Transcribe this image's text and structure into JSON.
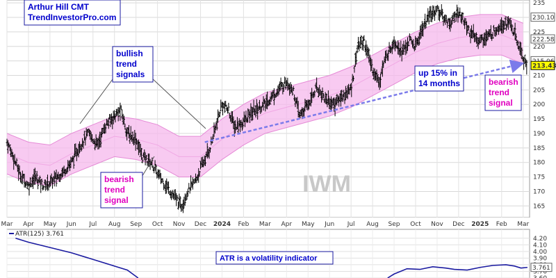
{
  "chart_data": [
    {
      "type": "candlestick-ohlc",
      "symbol": "IWM",
      "credit": {
        "line1": "Arthur Hill CMT",
        "line2": "TrendInvestorPro.com"
      },
      "y_axis": {
        "ticks": [
          165,
          170,
          175,
          180,
          185,
          190,
          195,
          200,
          205,
          210,
          215,
          220,
          225,
          230,
          235
        ],
        "ylim": [
          161,
          236
        ]
      },
      "x_axis": {
        "labels": [
          {
            "t": 0,
            "text": "Mar"
          },
          {
            "t": 1,
            "text": "Apr"
          },
          {
            "t": 2,
            "text": "May"
          },
          {
            "t": 3,
            "text": "Jun"
          },
          {
            "t": 4,
            "text": "Jul"
          },
          {
            "t": 5,
            "text": "Aug"
          },
          {
            "t": 6,
            "text": "Sep"
          },
          {
            "t": 7,
            "text": "Oct"
          },
          {
            "t": 8,
            "text": "Nov"
          },
          {
            "t": 9,
            "text": "Dec"
          },
          {
            "t": 10,
            "text": "2024",
            "bold": true
          },
          {
            "t": 11,
            "text": "Feb"
          },
          {
            "t": 12,
            "text": "Mar"
          },
          {
            "t": 13,
            "text": "Apr"
          },
          {
            "t": 14,
            "text": "May"
          },
          {
            "t": 15,
            "text": "Jun"
          },
          {
            "t": 16,
            "text": "Jul"
          },
          {
            "t": 17,
            "text": "Aug"
          },
          {
            "t": 18,
            "text": "Sep"
          },
          {
            "t": 19,
            "text": "Oct"
          },
          {
            "t": 20,
            "text": "Nov"
          },
          {
            "t": 21,
            "text": "Dec"
          },
          {
            "t": 22,
            "text": "2025",
            "bold": true
          },
          {
            "t": 23,
            "text": "Feb"
          },
          {
            "t": 24,
            "text": "Mar"
          }
        ],
        "xlim": [
          0,
          24.3
        ]
      },
      "price_path": [
        [
          0,
          187
        ],
        [
          0.3,
          182
        ],
        [
          0.6,
          176
        ],
        [
          1.0,
          172
        ],
        [
          1.3,
          175
        ],
        [
          1.7,
          172
        ],
        [
          2.0,
          173
        ],
        [
          2.5,
          176
        ],
        [
          3.0,
          180
        ],
        [
          3.4,
          186
        ],
        [
          3.8,
          190
        ],
        [
          4.2,
          186
        ],
        [
          4.6,
          193
        ],
        [
          5.0,
          196
        ],
        [
          5.3,
          198
        ],
        [
          5.6,
          190
        ],
        [
          6.0,
          188
        ],
        [
          6.3,
          182
        ],
        [
          6.7,
          180
        ],
        [
          7.0,
          176
        ],
        [
          7.4,
          172
        ],
        [
          7.8,
          168
        ],
        [
          8.1,
          165
        ],
        [
          8.4,
          170
        ],
        [
          8.8,
          174
        ],
        [
          9.0,
          178
        ],
        [
          9.4,
          184
        ],
        [
          9.7,
          192
        ],
        [
          10.0,
          200
        ],
        [
          10.3,
          198
        ],
        [
          10.6,
          192
        ],
        [
          11.0,
          194
        ],
        [
          11.5,
          198
        ],
        [
          12.0,
          200
        ],
        [
          12.5,
          204
        ],
        [
          13.0,
          208
        ],
        [
          13.3,
          205
        ],
        [
          13.6,
          196
        ],
        [
          14.0,
          200
        ],
        [
          14.4,
          206
        ],
        [
          14.8,
          202
        ],
        [
          15.2,
          200
        ],
        [
          15.6,
          203
        ],
        [
          16.0,
          205
        ],
        [
          16.3,
          220
        ],
        [
          16.6,
          222
        ],
        [
          17.0,
          212
        ],
        [
          17.3,
          208
        ],
        [
          17.6,
          216
        ],
        [
          18.0,
          222
        ],
        [
          18.4,
          218
        ],
        [
          18.7,
          222
        ],
        [
          19.0,
          220
        ],
        [
          19.3,
          226
        ],
        [
          19.6,
          230
        ],
        [
          20.0,
          233
        ],
        [
          20.3,
          230
        ],
        [
          20.6,
          228
        ],
        [
          21.0,
          232
        ],
        [
          21.3,
          228
        ],
        [
          21.6,
          224
        ],
        [
          22.0,
          222
        ],
        [
          22.5,
          224
        ],
        [
          23.0,
          228
        ],
        [
          23.4,
          228
        ],
        [
          23.7,
          222
        ],
        [
          24.0,
          216
        ],
        [
          24.2,
          213
        ]
      ],
      "bollinger_band": {
        "mid": [
          [
            0,
            183
          ],
          [
            1,
            180
          ],
          [
            2,
            179
          ],
          [
            3,
            183
          ],
          [
            4,
            186
          ],
          [
            5,
            189
          ],
          [
            6,
            188
          ],
          [
            7,
            186
          ],
          [
            8,
            182
          ],
          [
            9,
            182
          ],
          [
            10,
            188
          ],
          [
            11,
            193
          ],
          [
            12,
            197
          ],
          [
            13,
            199
          ],
          [
            14,
            201
          ],
          [
            15,
            203
          ],
          [
            16,
            206
          ],
          [
            17,
            210
          ],
          [
            18,
            214
          ],
          [
            19,
            218
          ],
          [
            20,
            221
          ],
          [
            21,
            223
          ],
          [
            22,
            224
          ],
          [
            23,
            224
          ],
          [
            24,
            221
          ]
        ],
        "half_width": 7
      },
      "price_labels": [
        {
          "value": 230.1,
          "text": "230.10",
          "style": "boxed"
        },
        {
          "value": 222.58,
          "text": "222.58",
          "style": "boxed"
        },
        {
          "value": 215.06,
          "text": "215.06",
          "style": "boxed"
        },
        {
          "value": 213.43,
          "text": "213.43",
          "style": "highlight"
        }
      ],
      "trend_arrow": {
        "from": [
          9.2,
          187
        ],
        "to": [
          23.9,
          214
        ]
      },
      "annotations": {
        "bullish": {
          "lines": [
            "bullish",
            "trend",
            "signals"
          ]
        },
        "up15": {
          "lines": [
            "up 15% in",
            "14 months"
          ]
        },
        "bearish_left": {
          "lines": [
            "bearish",
            "trend",
            "signal"
          ]
        },
        "bearish_right": {
          "lines": [
            "bearish",
            "trend",
            "signal"
          ]
        }
      },
      "watermark": "IWM",
      "colors": {
        "band": "#f5b8ec",
        "line": "#000000",
        "box_border": "#1a1aa0",
        "blue_text": "#0000cc",
        "magenta_text": "#e000c0",
        "arrow": "#7b7bea",
        "highlight": "#ffff00"
      }
    },
    {
      "type": "line",
      "series": [
        {
          "name": "ATR(125)",
          "last_value": "3.761"
        }
      ],
      "legend_text": "ATR(125) 3.761",
      "y_ticks": [
        3.6,
        3.7,
        3.8,
        3.9,
        4.0,
        4.1,
        4.2
      ],
      "y_tick_labels": [
        "3.60",
        "3.70",
        "3.80",
        "3.90",
        "4.00",
        "4.10",
        "4.20"
      ],
      "ylim": [
        3.6,
        4.25
      ],
      "segments": [
        [
          [
            0.4,
            4.2
          ],
          [
            1.0,
            4.14
          ],
          [
            2.0,
            4.06
          ],
          [
            3.0,
            3.98
          ],
          [
            4.0,
            3.88
          ],
          [
            5.0,
            3.78
          ],
          [
            5.6,
            3.72
          ],
          [
            6.1,
            3.6
          ]
        ],
        [
          [
            17.7,
            3.6
          ],
          [
            18.0,
            3.66
          ],
          [
            18.6,
            3.74
          ],
          [
            19.2,
            3.73
          ],
          [
            19.8,
            3.77
          ],
          [
            20.4,
            3.75
          ],
          [
            20.8,
            3.73
          ],
          [
            21.4,
            3.72
          ],
          [
            22.0,
            3.76
          ],
          [
            22.6,
            3.79
          ],
          [
            23.2,
            3.8
          ],
          [
            23.6,
            3.78
          ],
          [
            23.9,
            3.75
          ],
          [
            24.2,
            3.76
          ]
        ]
      ],
      "last_label": "3.761",
      "annotation": "ATR is a volatility indicator",
      "color": "#1a1aa0"
    }
  ]
}
